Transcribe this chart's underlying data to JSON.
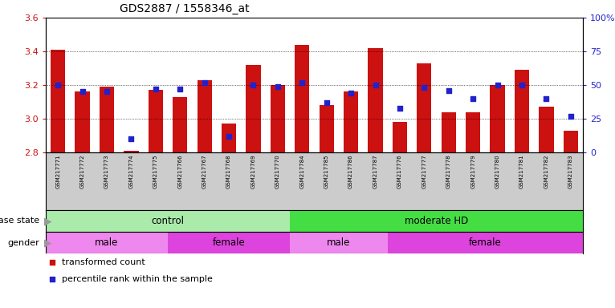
{
  "title": "GDS2887 / 1558346_at",
  "samples": [
    "GSM217771",
    "GSM217772",
    "GSM217773",
    "GSM217774",
    "GSM217775",
    "GSM217766",
    "GSM217767",
    "GSM217768",
    "GSM217769",
    "GSM217770",
    "GSM217784",
    "GSM217785",
    "GSM217786",
    "GSM217787",
    "GSM217776",
    "GSM217777",
    "GSM217778",
    "GSM217779",
    "GSM217780",
    "GSM217781",
    "GSM217782",
    "GSM217783"
  ],
  "transformed_count": [
    3.41,
    3.16,
    3.19,
    2.81,
    3.17,
    3.13,
    3.23,
    2.97,
    3.32,
    3.2,
    3.44,
    3.08,
    3.16,
    3.42,
    2.98,
    3.33,
    3.04,
    3.04,
    3.2,
    3.29,
    3.07,
    2.93
  ],
  "percentile_rank": [
    50,
    45,
    45,
    10,
    47,
    47,
    52,
    12,
    50,
    49,
    52,
    37,
    44,
    50,
    33,
    48,
    46,
    40,
    50,
    50,
    40,
    27
  ],
  "ylim_left": [
    2.8,
    3.6
  ],
  "ylim_right": [
    0,
    100
  ],
  "yticks_left": [
    2.8,
    3.0,
    3.2,
    3.4,
    3.6
  ],
  "yticks_right": [
    0,
    25,
    50,
    75,
    100
  ],
  "bar_color": "#cc1111",
  "dot_color": "#2222cc",
  "bar_bottom": 2.8,
  "disease_state_groups": [
    {
      "label": "control",
      "start": 0,
      "end": 10,
      "color": "#aaeaaa"
    },
    {
      "label": "moderate HD",
      "start": 10,
      "end": 22,
      "color": "#44dd44"
    }
  ],
  "gender_groups": [
    {
      "label": "male",
      "start": 0,
      "end": 5,
      "color": "#ee88ee"
    },
    {
      "label": "female",
      "start": 5,
      "end": 10,
      "color": "#dd44dd"
    },
    {
      "label": "male",
      "start": 10,
      "end": 14,
      "color": "#ee88ee"
    },
    {
      "label": "female",
      "start": 14,
      "end": 22,
      "color": "#dd44dd"
    }
  ],
  "disease_label": "disease state",
  "gender_label": "gender",
  "arrow_color": "#999999",
  "label_bg": "#cccccc",
  "legend_items": [
    {
      "label": "transformed count",
      "color": "#cc1111"
    },
    {
      "label": "percentile rank within the sample",
      "color": "#2222cc"
    }
  ]
}
